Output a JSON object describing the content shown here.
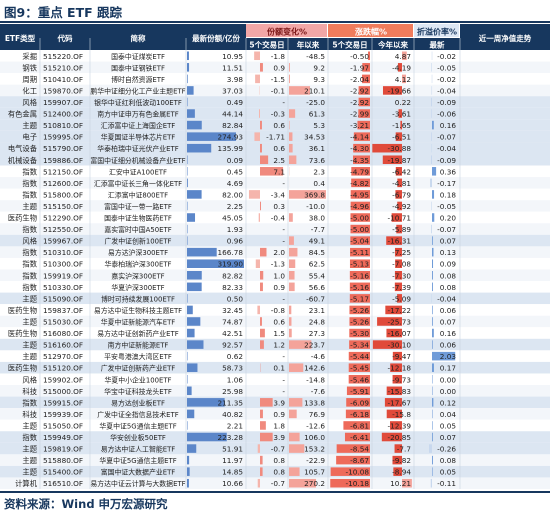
{
  "title": "图9：重点 ETF 跟踪",
  "source": "资料来源：Wind  申万宏源研究",
  "chart_data": {
    "type": "table",
    "group_headers": {
      "share_change": "份额变化%",
      "return": "涨跌幅%",
      "premium": "折溢价率%"
    },
    "columns": [
      "ETF类型",
      "代码",
      "简称",
      "最新份额/亿份",
      "5个交易日",
      "年以来",
      "5个交易日",
      "今年以来",
      "最新",
      "近一周净值走势"
    ],
    "rows": [
      {
        "type": "采掘",
        "code": "515220.OF",
        "name": "国泰中证煤炭ETF",
        "shares": "10.95",
        "chg5": "-1.8",
        "chgYtd": "-48.5",
        "ret5": "-0.50",
        "retYtd": "4.87",
        "prem": "-0.02",
        "band": 0
      },
      {
        "type": "钢铁",
        "code": "515210.OF",
        "name": "国泰中证钢铁ETF",
        "shares": "11.51",
        "chg5": "0.9",
        "chgYtd": "9.2",
        "ret5": "-1.97",
        "retYtd": "-4.19",
        "prem": "-0.05",
        "band": 0
      },
      {
        "type": "周期",
        "code": "510410.OF",
        "name": "博时自然资源ETF",
        "shares": "3.98",
        "chg5": "-1.5",
        "chgYtd": "9.3",
        "ret5": "-2.04",
        "retYtd": "4.12",
        "prem": "-0.02",
        "band": 0
      },
      {
        "type": "化工",
        "code": "159870.OF",
        "name": "鹏华中证细分化工产业主题ETF",
        "shares": "37.03",
        "chg5": "-0.1",
        "chgYtd": "210.1",
        "ret5": "-2.92",
        "retYtd": "-19.66",
        "prem": "-0.04",
        "band": 0
      },
      {
        "type": "风格",
        "code": "159907.OF",
        "name": "银华中证红利低波动100ETF",
        "shares": "0.49",
        "chg5": "-",
        "chgYtd": "-25.0",
        "ret5": "-2.92",
        "retYtd": "0.22",
        "prem": "-0.09",
        "band": 1
      },
      {
        "type": "有色金属",
        "code": "512400.OF",
        "name": "南方中证申万有色金属ETF",
        "shares": "44.14",
        "chg5": "-0.3",
        "chgYtd": "61.3",
        "ret5": "-2.99",
        "retYtd": "-3.61",
        "prem": "-0.06",
        "band": 1
      },
      {
        "type": "主题",
        "code": "510810.OF",
        "name": "汇添富中证上海国企ETF",
        "shares": "82.84",
        "chg5": "0.6",
        "chgYtd": "5.3",
        "ret5": "-3.21",
        "retYtd": "-1.65",
        "prem": "0.16",
        "band": 1
      },
      {
        "type": "电子",
        "code": "159995.OF",
        "name": "华夏国证半导体芯片ETF",
        "shares": "274.93",
        "chg5": "-1.71",
        "chgYtd": "34.53",
        "ret5": "-4.14",
        "retYtd": "-6.51",
        "prem": "-0.07",
        "band": 1
      },
      {
        "type": "电气设备",
        "code": "515790.OF",
        "name": "华泰柏瑞中证光伏产业ETF",
        "shares": "135.99",
        "chg5": "0.6",
        "chgYtd": "36.1",
        "ret5": "-4.30",
        "retYtd": "-30.88",
        "prem": "-0.04",
        "band": 1
      },
      {
        "type": "机械设备",
        "code": "159886.OF",
        "name": "富国中证细分机械设备产业ETF",
        "shares": "0.09",
        "chg5": "2.5",
        "chgYtd": "73.6",
        "ret5": "-4.35",
        "retYtd": "-19.87",
        "prem": "-0.09",
        "band": 1
      },
      {
        "type": "指数",
        "code": "512150.OF",
        "name": "汇安中证A100ETF",
        "shares": "0.45",
        "chg5": "7.1",
        "chgYtd": "2.3",
        "ret5": "-4.79",
        "retYtd": "-6.42",
        "prem": "0.36",
        "band": 0
      },
      {
        "type": "指数",
        "code": "512600.OF",
        "name": "汇添富中证长三角一体化ETF",
        "shares": "4.69",
        "chg5": "-",
        "chgYtd": "0.4",
        "ret5": "-4.82",
        "retYtd": "-4.81",
        "prem": "-0.17",
        "band": 0
      },
      {
        "type": "指数",
        "code": "515800.OF",
        "name": "汇添富中证800ETF",
        "shares": "82.00",
        "chg5": "-3.4",
        "chgYtd": "369.8",
        "ret5": "-4.95",
        "retYtd": "-6.79",
        "prem": "0.18",
        "band": 0
      },
      {
        "type": "主题",
        "code": "515150.OF",
        "name": "富国中证一带一路ETF",
        "shares": "2.25",
        "chg5": "0.3",
        "chgYtd": "-10.0",
        "ret5": "-4.96",
        "retYtd": "-4.92",
        "prem": "-0.05",
        "band": 0
      },
      {
        "type": "医药生物",
        "code": "512290.OF",
        "name": "国泰中证生物医药ETF",
        "shares": "45.05",
        "chg5": "-0.4",
        "chgYtd": "38.0",
        "ret5": "-5.00",
        "retYtd": "-10.71",
        "prem": "0.20",
        "band": 0
      },
      {
        "type": "指数",
        "code": "512550.OF",
        "name": "嘉实富时中国A50ETF",
        "shares": "1.93",
        "chg5": "-",
        "chgYtd": "-7.7",
        "ret5": "-5.00",
        "retYtd": "-5.89",
        "prem": "-0.07",
        "band": 0
      },
      {
        "type": "风格",
        "code": "159967.OF",
        "name": "广发中证创新100ETF",
        "shares": "0.96",
        "chg5": "-",
        "chgYtd": "49.1",
        "ret5": "-5.04",
        "retYtd": "-16.31",
        "prem": "0.07",
        "band": 1
      },
      {
        "type": "指数",
        "code": "510310.OF",
        "name": "易方达沪深300ETF",
        "shares": "166.78",
        "chg5": "2.0",
        "chgYtd": "84.5",
        "ret5": "-5.11",
        "retYtd": "-7.25",
        "prem": "0.13",
        "band": 0
      },
      {
        "type": "指数",
        "code": "510300.OF",
        "name": "华泰柏瑞沪深300ETF",
        "shares": "319.90",
        "chg5": "-1.3",
        "chgYtd": "62.5",
        "ret5": "-5.13",
        "retYtd": "-7.08",
        "prem": "0.09",
        "band": 0
      },
      {
        "type": "指数",
        "code": "159919.OF",
        "name": "嘉实沪深300ETF",
        "shares": "82.82",
        "chg5": "1.0",
        "chgYtd": "55.4",
        "ret5": "-5.16",
        "retYtd": "-7.30",
        "prem": "0.08",
        "band": 0
      },
      {
        "type": "指数",
        "code": "510330.OF",
        "name": "华夏沪深300ETF",
        "shares": "82.33",
        "chg5": "0.9",
        "chgYtd": "56.6",
        "ret5": "-5.16",
        "retYtd": "-7.39",
        "prem": "0.08",
        "band": 0
      },
      {
        "type": "主题",
        "code": "515090.OF",
        "name": "博时可持续发展100ETF",
        "shares": "0.50",
        "chg5": "-",
        "chgYtd": "-60.7",
        "ret5": "-5.17",
        "retYtd": "-5.09",
        "prem": "-0.04",
        "band": 1
      },
      {
        "type": "医药生物",
        "code": "159837.OF",
        "name": "易方达中证生物科技主题ETF",
        "shares": "32.45",
        "chg5": "-0.8",
        "chgYtd": "23.1",
        "ret5": "-5.26",
        "retYtd": "-17.22",
        "prem": "0.06",
        "band": 0
      },
      {
        "type": "主题",
        "code": "515030.OF",
        "name": "华夏中证新能源汽车ETF",
        "shares": "74.87",
        "chg5": "0.6",
        "chgYtd": "24.8",
        "ret5": "-5.26",
        "retYtd": "-25.73",
        "prem": "0.07",
        "band": 0
      },
      {
        "type": "医药生物",
        "code": "516080.OF",
        "name": "易方达中证创新药产业ETF",
        "shares": "42.51",
        "chg5": "1.5",
        "chgYtd": "27.3",
        "ret5": "-5.30",
        "retYtd": "-16.07",
        "prem": "0.16",
        "band": 0
      },
      {
        "type": "主题",
        "code": "516160.OF",
        "name": "南方中证新能源ETF",
        "shares": "92.57",
        "chg5": "1.2",
        "chgYtd": "223.7",
        "ret5": "-5.34",
        "retYtd": "-30.10",
        "prem": "0.06",
        "band": 1
      },
      {
        "type": "主题",
        "code": "512970.OF",
        "name": "平安粤港澳大湾区ETF",
        "shares": "0.62",
        "chg5": "-",
        "chgYtd": "-4.6",
        "ret5": "-5.44",
        "retYtd": "-9.47",
        "prem": "2.03",
        "band": 0
      },
      {
        "type": "医药生物",
        "code": "515120.OF",
        "name": "广发中证创新药产业ETF",
        "shares": "58.73",
        "chg5": "0.1",
        "chgYtd": "142.6",
        "ret5": "-5.45",
        "retYtd": "-12.18",
        "prem": "0.17",
        "band": 1
      },
      {
        "type": "风格",
        "code": "159902.OF",
        "name": "华夏中小企业100ETF",
        "shares": "1.06",
        "chg5": "-",
        "chgYtd": "-14.8",
        "ret5": "-5.46",
        "retYtd": "-9.73",
        "prem": "0.00",
        "band": 0
      },
      {
        "type": "科技",
        "code": "515000.OF",
        "name": "华宝中证科技龙头ETF",
        "shares": "25.98",
        "chg5": "-",
        "chgYtd": "-7.6",
        "ret5": "-5.91",
        "retYtd": "-15.83",
        "prem": "0.00",
        "band": 0
      },
      {
        "type": "指数",
        "code": "159915.OF",
        "name": "易方达创业板ETF",
        "shares": "211.35",
        "chg5": "3.9",
        "chgYtd": "133.8",
        "ret5": "-6.09",
        "retYtd": "-17.67",
        "prem": "0.12",
        "band": 1
      },
      {
        "type": "科技",
        "code": "159939.OF",
        "name": "广发中证全指信息技术ETF",
        "shares": "40.82",
        "chg5": "0.9",
        "chgYtd": "76.9",
        "ret5": "-6.18",
        "retYtd": "-15.8",
        "prem": "0.04",
        "band": 0
      },
      {
        "type": "主题",
        "code": "515050.OF",
        "name": "华夏中证5G通信主题ETF",
        "shares": "2.21",
        "chg5": "1.8",
        "chgYtd": "-12.6",
        "ret5": "-6.81",
        "retYtd": "-12.39",
        "prem": "0.05",
        "band": 0
      },
      {
        "type": "指数",
        "code": "159949.OF",
        "name": "华安创业板50ETF",
        "shares": "223.28",
        "chg5": "3.9",
        "chgYtd": "106.0",
        "ret5": "-6.41",
        "retYtd": "-20.85",
        "prem": "0.07",
        "band": 1
      },
      {
        "type": "主题",
        "code": "159819.OF",
        "name": "易方达中证人工智能ETF",
        "shares": "51.91",
        "chg5": "-0.7",
        "chgYtd": "153.2",
        "ret5": "-8.54",
        "retYtd": "-7.7",
        "prem": "-0.26",
        "band": 1
      },
      {
        "type": "主题",
        "code": "515880.OF",
        "name": "华夏中证5G通信主题ETF",
        "shares": "11.97",
        "chg5": "0.8",
        "chgYtd": "-22.9",
        "ret5": "-8.67",
        "retYtd": "-9.82",
        "prem": "0.08",
        "band": 0
      },
      {
        "type": "主题",
        "code": "515400.OF",
        "name": "富国中证大数据产业ETF",
        "shares": "14.85",
        "chg5": "0.8",
        "chgYtd": "105.7",
        "ret5": "-10.08",
        "retYtd": "-8.94",
        "prem": "0.05",
        "band": 1
      },
      {
        "type": "计算机",
        "code": "516510.OF",
        "name": "易方达中证云计算与大数据ETF",
        "shares": "10.66",
        "chg5": "-0.7",
        "chgYtd": "270.2",
        "ret5": "-10.18",
        "retYtd": "10.21",
        "prem": "-0.11",
        "band": 0
      }
    ]
  }
}
